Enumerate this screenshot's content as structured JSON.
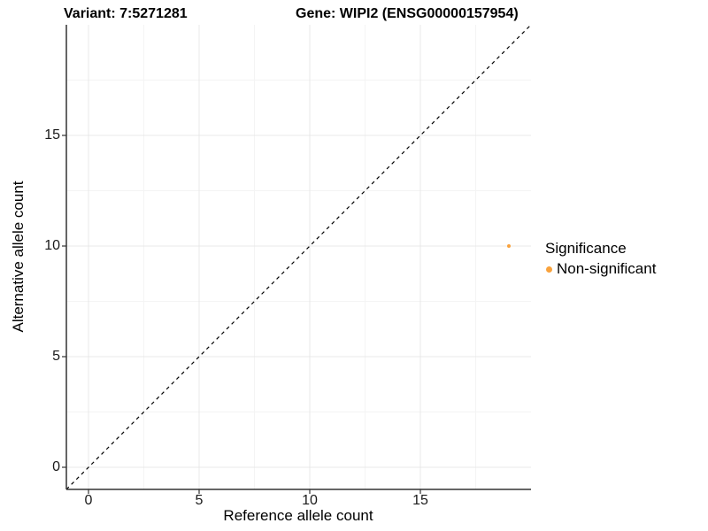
{
  "titles": {
    "variant": "Variant: 7:5271281",
    "gene": "Gene: WIPI2 (ENSG00000157954)"
  },
  "chart_data": {
    "type": "scatter",
    "title_left": "Variant: 7:5271281",
    "title_right": "Gene: WIPI2 (ENSG00000157954)",
    "xlabel": "Reference allele count",
    "ylabel": "Alternative allele count",
    "xlim": [
      -1,
      20
    ],
    "ylim": [
      -1,
      20
    ],
    "x_major_ticks": [
      0,
      5,
      10,
      15
    ],
    "y_major_ticks": [
      0,
      5,
      10,
      15
    ],
    "x_minor_ticks": [
      2.5,
      7.5,
      12.5,
      17.5
    ],
    "y_minor_ticks": [
      2.5,
      7.5,
      12.5,
      17.5
    ],
    "grid": "on",
    "identity_line": {
      "style": "dashed",
      "color": "#000000",
      "from": [
        -1,
        -1
      ],
      "to": [
        20,
        20
      ]
    },
    "series": [
      {
        "name": "Non-significant",
        "color": "#F9A23C",
        "points": [
          {
            "x": 19,
            "y": 10
          }
        ]
      }
    ],
    "legend": {
      "title": "Significance",
      "position": "right",
      "entries": [
        {
          "label": "Non-significant",
          "color": "#F9A23C"
        }
      ]
    }
  },
  "colors": {
    "point_orange": "#F9A23C",
    "axis_line": "#333333",
    "grid_major": "#e9e9e9",
    "grid_minor": "#f4f4f4",
    "background": "#ffffff"
  }
}
